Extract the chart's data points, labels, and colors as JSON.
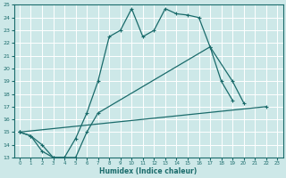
{
  "xlabel": "Humidex (Indice chaleur)",
  "background_color": "#cde8e8",
  "grid_color": "#ffffff",
  "line_color": "#1a6b6b",
  "xlim": [
    -0.5,
    23.5
  ],
  "ylim": [
    13,
    25
  ],
  "xticks": [
    0,
    1,
    2,
    3,
    4,
    5,
    6,
    7,
    8,
    9,
    10,
    11,
    12,
    13,
    14,
    15,
    16,
    17,
    18,
    19,
    20,
    21,
    22,
    23
  ],
  "yticks": [
    13,
    14,
    15,
    16,
    17,
    18,
    19,
    20,
    21,
    22,
    23,
    24,
    25
  ],
  "line1_x": [
    0,
    1,
    2,
    3,
    4,
    5,
    6,
    7,
    8,
    9,
    10,
    11,
    12,
    13,
    14,
    15,
    16,
    17,
    18,
    19
  ],
  "line1_y": [
    15.0,
    14.7,
    13.5,
    13.0,
    13.0,
    14.5,
    16.5,
    19.0,
    22.5,
    23.0,
    24.7,
    22.5,
    23.0,
    24.7,
    24.3,
    24.2,
    24.0,
    21.7,
    19.0,
    17.5
  ],
  "line2_x": [
    0,
    1,
    2,
    3,
    4,
    5,
    6,
    7,
    17,
    19,
    20
  ],
  "line2_y": [
    15.0,
    14.7,
    14.0,
    13.0,
    13.0,
    13.0,
    15.0,
    16.5,
    21.7,
    19.0,
    17.3
  ],
  "line3_x": [
    0,
    22
  ],
  "line3_y": [
    15.0,
    17.0
  ]
}
